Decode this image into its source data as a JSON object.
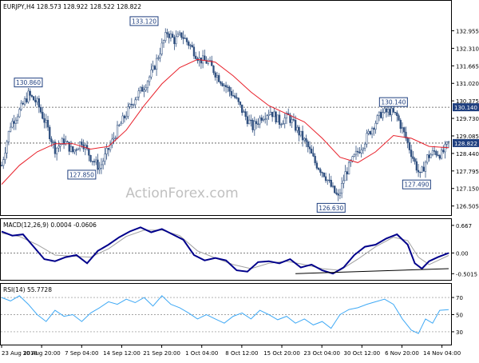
{
  "header": {
    "symbol_info": "EURJPY,H4  128.573 128.922 128.522 128.822"
  },
  "watermark": "ActionForex.com",
  "colors": {
    "candle": "#2f4f7f",
    "sma": "#e8202a",
    "macd": "#00008b",
    "signal": "#a0a0a0",
    "rsi": "#3fa9f5",
    "level_box": "#1f3f7f",
    "price_box": "#1f3f7f",
    "grid": "#000000"
  },
  "chart_data": [
    {
      "type": "candlestick",
      "title": "EURJPY,H4  128.573 128.922 128.522 128.822",
      "ylim": [
        126.2,
        134.0
      ],
      "y_ticks": [
        "132.955",
        "132.310",
        "131.665",
        "131.020",
        "130.375",
        "129.730",
        "129.085",
        "128.440",
        "127.795",
        "127.150",
        "126.505"
      ],
      "y_tick_values": [
        132.955,
        132.31,
        131.665,
        131.02,
        130.375,
        129.73,
        129.085,
        128.44,
        127.795,
        127.15,
        126.505
      ],
      "x_ticks": [
        "23 Aug 2018",
        "30 Aug 20:00",
        "7 Sep 04:00",
        "14 Sep 12:00",
        "21 Sep 20:00",
        "1 Oct 04:00",
        "8 Oct 12:00",
        "15 Oct 20:00",
        "23 Oct 04:00",
        "30 Oct 12:00",
        "6 Nov 20:00",
        "14 Nov 04:00"
      ],
      "close_path": [
        [
          0,
          128.0
        ],
        [
          5,
          129.5
        ],
        [
          10,
          130.0
        ],
        [
          15,
          130.6
        ],
        [
          20,
          130.3
        ],
        [
          25,
          129.5
        ],
        [
          30,
          128.6
        ],
        [
          35,
          128.9
        ],
        [
          40,
          128.5
        ],
        [
          45,
          128.9
        ],
        [
          50,
          128.3
        ],
        [
          55,
          127.9
        ],
        [
          60,
          128.6
        ],
        [
          65,
          129.3
        ],
        [
          70,
          129.9
        ],
        [
          75,
          130.5
        ],
        [
          80,
          130.9
        ],
        [
          85,
          131.5
        ],
        [
          90,
          132.4
        ],
        [
          93,
          132.9
        ],
        [
          97,
          132.6
        ],
        [
          101,
          132.8
        ],
        [
          106,
          132.4
        ],
        [
          111,
          131.9
        ],
        [
          116,
          131.8
        ],
        [
          121,
          131.3
        ],
        [
          126,
          130.9
        ],
        [
          131,
          130.5
        ],
        [
          136,
          129.9
        ],
        [
          141,
          129.4
        ],
        [
          146,
          129.8
        ],
        [
          151,
          130.0
        ],
        [
          156,
          129.6
        ],
        [
          161,
          129.8
        ],
        [
          166,
          129.3
        ],
        [
          171,
          128.8
        ],
        [
          176,
          128.1
        ],
        [
          181,
          127.7
        ],
        [
          186,
          127.1
        ],
        [
          189,
          126.8
        ],
        [
          193,
          127.7
        ],
        [
          198,
          128.3
        ],
        [
          203,
          128.8
        ],
        [
          208,
          129.4
        ],
        [
          213,
          129.9
        ],
        [
          218,
          130.0
        ],
        [
          222,
          129.8
        ],
        [
          227,
          129.0
        ],
        [
          232,
          128.1
        ],
        [
          235,
          127.6
        ],
        [
          239,
          128.3
        ],
        [
          243,
          128.5
        ],
        [
          247,
          128.4
        ],
        [
          251,
          128.82
        ]
      ],
      "sma_path": [
        [
          0,
          127.3
        ],
        [
          10,
          128.0
        ],
        [
          20,
          128.5
        ],
        [
          30,
          128.8
        ],
        [
          40,
          128.8
        ],
        [
          50,
          128.6
        ],
        [
          60,
          128.7
        ],
        [
          70,
          129.3
        ],
        [
          80,
          130.2
        ],
        [
          90,
          131.0
        ],
        [
          100,
          131.6
        ],
        [
          110,
          131.9
        ],
        [
          120,
          131.8
        ],
        [
          130,
          131.3
        ],
        [
          140,
          130.7
        ],
        [
          150,
          130.2
        ],
        [
          160,
          129.9
        ],
        [
          170,
          129.6
        ],
        [
          180,
          129.0
        ],
        [
          190,
          128.3
        ],
        [
          200,
          128.1
        ],
        [
          210,
          128.5
        ],
        [
          220,
          129.1
        ],
        [
          230,
          129.0
        ],
        [
          240,
          128.7
        ],
        [
          251,
          128.65
        ]
      ],
      "horizontal_levels": [
        {
          "value": 130.14,
          "label": "130.140"
        },
        {
          "value": 128.822,
          "label": "128.822"
        }
      ],
      "annotations": [
        {
          "label": "130.860",
          "index": 15,
          "value": 130.86
        },
        {
          "label": "127.850",
          "index": 45,
          "value": 127.85
        },
        {
          "label": "133.120",
          "index": 80,
          "value": 133.12
        },
        {
          "label": "126.630",
          "index": 185,
          "value": 126.63
        },
        {
          "label": "130.140",
          "index": 220,
          "value": 130.14
        },
        {
          "label": "127.490",
          "index": 233,
          "value": 127.49
        }
      ]
    },
    {
      "type": "line",
      "title": "MACD(12,26,9) 0.0004 -0.0606",
      "ylim": [
        -0.65,
        0.8
      ],
      "y_ticks": [
        "0.667",
        "0.00",
        "-0.5015"
      ],
      "y_tick_values": [
        0.667,
        0.0,
        -0.5015
      ],
      "series": [
        {
          "name": "MACD",
          "path": [
            [
              0,
              0.52
            ],
            [
              6,
              0.42
            ],
            [
              12,
              0.45
            ],
            [
              18,
              0.15
            ],
            [
              24,
              -0.15
            ],
            [
              30,
              -0.2
            ],
            [
              36,
              -0.1
            ],
            [
              42,
              -0.05
            ],
            [
              48,
              -0.25
            ],
            [
              54,
              0.05
            ],
            [
              60,
              0.2
            ],
            [
              66,
              0.38
            ],
            [
              72,
              0.52
            ],
            [
              78,
              0.62
            ],
            [
              84,
              0.5
            ],
            [
              90,
              0.58
            ],
            [
              96,
              0.45
            ],
            [
              102,
              0.32
            ],
            [
              108,
              -0.05
            ],
            [
              114,
              -0.18
            ],
            [
              120,
              -0.12
            ],
            [
              126,
              -0.18
            ],
            [
              132,
              -0.42
            ],
            [
              138,
              -0.45
            ],
            [
              144,
              -0.22
            ],
            [
              150,
              -0.2
            ],
            [
              156,
              -0.25
            ],
            [
              162,
              -0.15
            ],
            [
              168,
              -0.35
            ],
            [
              174,
              -0.28
            ],
            [
              180,
              -0.42
            ],
            [
              186,
              -0.5
            ],
            [
              192,
              -0.35
            ],
            [
              198,
              -0.05
            ],
            [
              204,
              0.15
            ],
            [
              210,
              0.2
            ],
            [
              216,
              0.35
            ],
            [
              222,
              0.45
            ],
            [
              228,
              0.2
            ],
            [
              232,
              -0.25
            ],
            [
              236,
              -0.38
            ],
            [
              240,
              -0.2
            ],
            [
              245,
              -0.1
            ],
            [
              251,
              0.0
            ]
          ]
        },
        {
          "name": "Signal",
          "path": [
            [
              0,
              0.48
            ],
            [
              10,
              0.4
            ],
            [
              20,
              0.2
            ],
            [
              30,
              -0.05
            ],
            [
              40,
              -0.08
            ],
            [
              50,
              -0.1
            ],
            [
              60,
              0.1
            ],
            [
              70,
              0.4
            ],
            [
              80,
              0.55
            ],
            [
              90,
              0.55
            ],
            [
              100,
              0.42
            ],
            [
              110,
              0.05
            ],
            [
              120,
              -0.12
            ],
            [
              130,
              -0.28
            ],
            [
              140,
              -0.38
            ],
            [
              150,
              -0.25
            ],
            [
              160,
              -0.2
            ],
            [
              170,
              -0.28
            ],
            [
              180,
              -0.38
            ],
            [
              190,
              -0.42
            ],
            [
              200,
              -0.15
            ],
            [
              210,
              0.15
            ],
            [
              220,
              0.38
            ],
            [
              228,
              0.3
            ],
            [
              234,
              -0.1
            ],
            [
              240,
              -0.28
            ],
            [
              251,
              -0.06
            ]
          ]
        }
      ],
      "trendline": [
        [
          165,
          -0.5
        ],
        [
          251,
          -0.38
        ]
      ]
    },
    {
      "type": "line",
      "title": "RSI(14) 55.7728",
      "ylim": [
        15,
        85
      ],
      "y_ticks": [
        "70",
        "50",
        "30"
      ],
      "y_tick_values": [
        70,
        50,
        30
      ],
      "series": [
        {
          "name": "RSI",
          "path": [
            [
              0,
              70
            ],
            [
              5,
              66
            ],
            [
              10,
              72
            ],
            [
              15,
              62
            ],
            [
              20,
              50
            ],
            [
              25,
              42
            ],
            [
              30,
              55
            ],
            [
              35,
              48
            ],
            [
              40,
              50
            ],
            [
              45,
              42
            ],
            [
              50,
              52
            ],
            [
              55,
              58
            ],
            [
              60,
              65
            ],
            [
              65,
              62
            ],
            [
              70,
              68
            ],
            [
              75,
              64
            ],
            [
              80,
              70
            ],
            [
              85,
              60
            ],
            [
              90,
              72
            ],
            [
              95,
              62
            ],
            [
              100,
              58
            ],
            [
              105,
              52
            ],
            [
              110,
              45
            ],
            [
              115,
              50
            ],
            [
              120,
              45
            ],
            [
              125,
              40
            ],
            [
              130,
              48
            ],
            [
              135,
              52
            ],
            [
              140,
              45
            ],
            [
              145,
              55
            ],
            [
              150,
              50
            ],
            [
              155,
              44
            ],
            [
              160,
              48
            ],
            [
              165,
              40
            ],
            [
              170,
              45
            ],
            [
              175,
              38
            ],
            [
              180,
              42
            ],
            [
              185,
              34
            ],
            [
              190,
              50
            ],
            [
              195,
              56
            ],
            [
              200,
              58
            ],
            [
              205,
              62
            ],
            [
              210,
              65
            ],
            [
              215,
              68
            ],
            [
              220,
              62
            ],
            [
              225,
              45
            ],
            [
              230,
              32
            ],
            [
              234,
              28
            ],
            [
              238,
              45
            ],
            [
              242,
              40
            ],
            [
              246,
              55
            ],
            [
              251,
              55.8
            ]
          ]
        }
      ]
    }
  ]
}
